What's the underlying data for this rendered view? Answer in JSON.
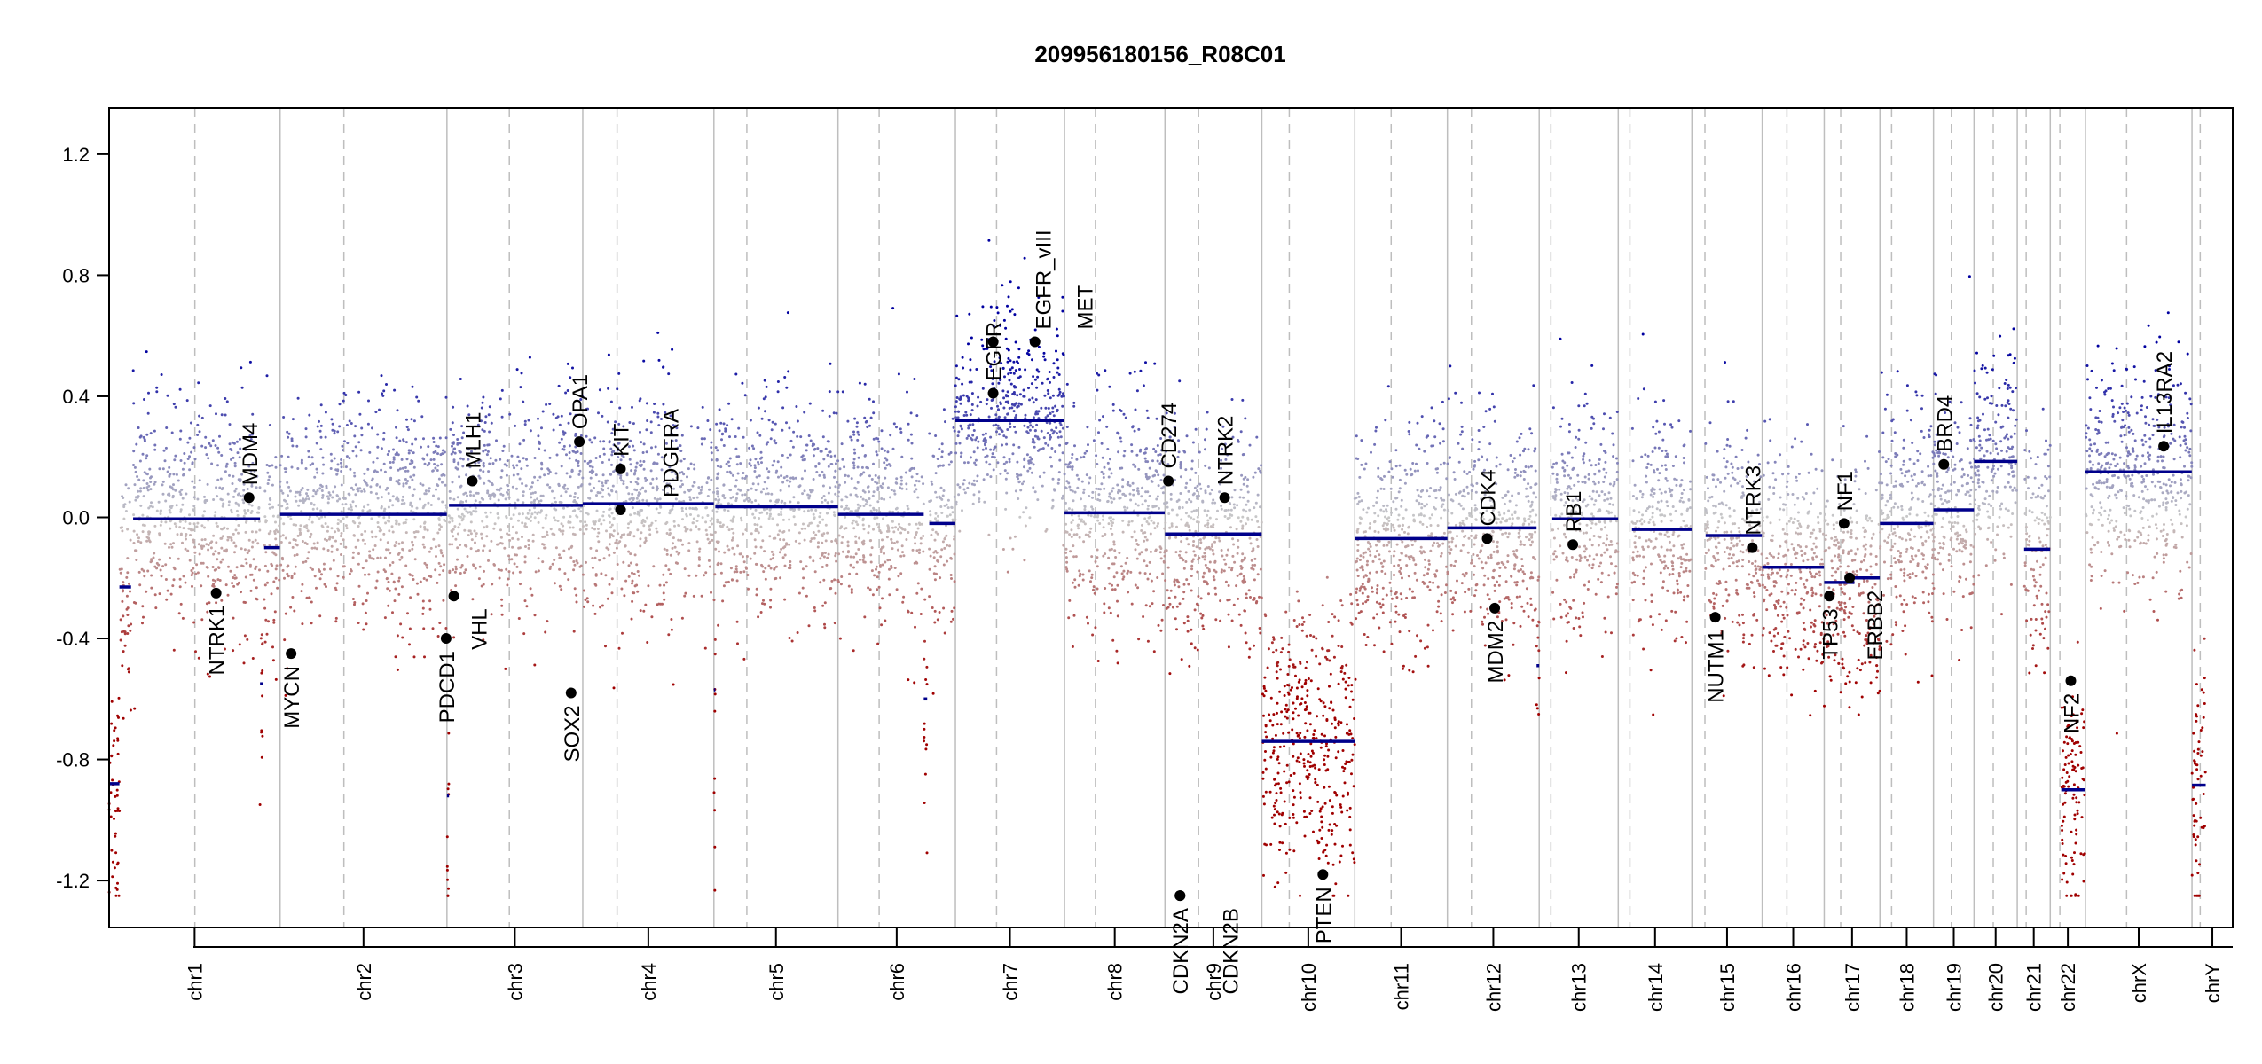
{
  "chart_data": {
    "type": "scatter",
    "title": "209956180156_R08C01",
    "xlabel": "",
    "ylabel": "",
    "ylim": [
      -1.355,
      1.352
    ],
    "yticks": [
      "-1.2",
      "-0.8",
      "-0.4",
      "0.0",
      "0.4",
      "0.8",
      "1.2"
    ],
    "grid": false,
    "chromosomes": [
      {
        "name": "chr1",
        "length": 249.25,
        "centromere": 125
      },
      {
        "name": "chr2",
        "length": 243.2,
        "centromere": 93
      },
      {
        "name": "chr3",
        "length": 198.0,
        "centromere": 91
      },
      {
        "name": "chr4",
        "length": 191.15,
        "centromere": 50
      },
      {
        "name": "chr5",
        "length": 180.9,
        "centromere": 48
      },
      {
        "name": "chr6",
        "length": 171.1,
        "centromere": 60
      },
      {
        "name": "chr7",
        "length": 159.1,
        "centromere": 60
      },
      {
        "name": "chr8",
        "length": 146.4,
        "centromere": 45
      },
      {
        "name": "chr9",
        "length": 141.2,
        "centromere": 49
      },
      {
        "name": "chr10",
        "length": 135.5,
        "centromere": 40
      },
      {
        "name": "chr11",
        "length": 135.0,
        "centromere": 53
      },
      {
        "name": "chr12",
        "length": 133.85,
        "centromere": 35
      },
      {
        "name": "chr13",
        "length": 115.2,
        "centromere": 17
      },
      {
        "name": "chr14",
        "length": 107.35,
        "centromere": 17
      },
      {
        "name": "chr15",
        "length": 102.5,
        "centromere": 19
      },
      {
        "name": "chr16",
        "length": 90.35,
        "centromere": 36
      },
      {
        "name": "chr17",
        "length": 81.2,
        "centromere": 24
      },
      {
        "name": "chr18",
        "length": 78.1,
        "centromere": 17
      },
      {
        "name": "chr19",
        "length": 59.1,
        "centromere": 26
      },
      {
        "name": "chr20",
        "length": 63.0,
        "centromere": 28
      },
      {
        "name": "chr21",
        "length": 48.1,
        "centromere": 13
      },
      {
        "name": "chr22",
        "length": 51.3,
        "centromere": 14
      },
      {
        "name": "chrX",
        "length": 155.3,
        "centromere": 60
      },
      {
        "name": "chrY",
        "length": 59.4,
        "centromere": 12
      }
    ],
    "segments": [
      {
        "chr": "chr1",
        "start": 0,
        "end": 15,
        "value": -0.88
      },
      {
        "chr": "chr1",
        "start": 15,
        "end": 32,
        "value": -0.23
      },
      {
        "chr": "chr1",
        "start": 35,
        "end": 220,
        "value": -0.005
      },
      {
        "chr": "chr1",
        "start": 220,
        "end": 224,
        "value": -0.55
      },
      {
        "chr": "chr1",
        "start": 226,
        "end": 249,
        "value": -0.1
      },
      {
        "chr": "chr2",
        "start": 0,
        "end": 243,
        "value": 0.01
      },
      {
        "chr": "chr3",
        "start": 0,
        "end": 3,
        "value": -0.92
      },
      {
        "chr": "chr3",
        "start": 3,
        "end": 198,
        "value": 0.04
      },
      {
        "chr": "chr4",
        "start": 0,
        "end": 191,
        "value": 0.045
      },
      {
        "chr": "chr5",
        "start": 0,
        "end": 2,
        "value": -0.57
      },
      {
        "chr": "chr5",
        "start": 2,
        "end": 181,
        "value": 0.035
      },
      {
        "chr": "chr6",
        "start": 0,
        "end": 125,
        "value": 0.01
      },
      {
        "chr": "chr6",
        "start": 125,
        "end": 130,
        "value": -0.6
      },
      {
        "chr": "chr6",
        "start": 133,
        "end": 171,
        "value": -0.02
      },
      {
        "chr": "chr7",
        "start": 0,
        "end": 159,
        "value": 0.32
      },
      {
        "chr": "chr8",
        "start": 0,
        "end": 146,
        "value": 0.015
      },
      {
        "chr": "chr9",
        "start": 0,
        "end": 141,
        "value": -0.055
      },
      {
        "chr": "chr10",
        "start": 0,
        "end": 135.5,
        "value": -0.74
      },
      {
        "chr": "chr11",
        "start": 0,
        "end": 135,
        "value": -0.07
      },
      {
        "chr": "chr12",
        "start": 0,
        "end": 130,
        "value": -0.035
      },
      {
        "chr": "chr12",
        "start": 130,
        "end": 133.85,
        "value": -0.49
      },
      {
        "chr": "chr13",
        "start": 19,
        "end": 115,
        "value": -0.005
      },
      {
        "chr": "chr14",
        "start": 20,
        "end": 107,
        "value": -0.04
      },
      {
        "chr": "chr15",
        "start": 20,
        "end": 102,
        "value": -0.06
      },
      {
        "chr": "chr16",
        "start": 0,
        "end": 90,
        "value": -0.165
      },
      {
        "chr": "chr17",
        "start": 0,
        "end": 44,
        "value": -0.215
      },
      {
        "chr": "chr17",
        "start": 44,
        "end": 81,
        "value": -0.2
      },
      {
        "chr": "chr18",
        "start": 0,
        "end": 78,
        "value": -0.02
      },
      {
        "chr": "chr19",
        "start": 0,
        "end": 59,
        "value": 0.025
      },
      {
        "chr": "chr20",
        "start": 0,
        "end": 63,
        "value": 0.185
      },
      {
        "chr": "chr21",
        "start": 10,
        "end": 48,
        "value": -0.105
      },
      {
        "chr": "chr22",
        "start": 16,
        "end": 51,
        "value": -0.9
      },
      {
        "chr": "chrX",
        "start": 0,
        "end": 155,
        "value": 0.15
      },
      {
        "chr": "chrY",
        "start": 0,
        "end": 20,
        "value": -0.885
      }
    ],
    "genes": [
      {
        "name": "NTRK1",
        "chr": "chr1",
        "pos": 156,
        "value": -0.25
      },
      {
        "name": "MDM4",
        "chr": "chr1",
        "pos": 204,
        "value": 0.065
      },
      {
        "name": "MYCN",
        "chr": "chr2",
        "pos": 16,
        "value": -0.45
      },
      {
        "name": "PDCD1",
        "chr": "chr2",
        "pos": 242,
        "value": -0.4
      },
      {
        "name": "VHL",
        "chr": "chr3",
        "pos": 10,
        "value": -0.26
      },
      {
        "name": "MLH1",
        "chr": "chr3",
        "pos": 37,
        "value": 0.12
      },
      {
        "name": "SOX2",
        "chr": "chr3",
        "pos": 181,
        "value": -0.58
      },
      {
        "name": "OPA1",
        "chr": "chr3",
        "pos": 193,
        "value": 0.25
      },
      {
        "name": "KIT",
        "chr": "chr4",
        "pos": 55,
        "value": 0.16
      },
      {
        "name": "PDGFRA",
        "chr": "chr4",
        "pos": 55,
        "value": 0.025
      },
      {
        "name": "EGFR",
        "chr": "chr7",
        "pos": 55,
        "value": 0.41
      },
      {
        "name": "EGFR_vIII",
        "chr": "chr7",
        "pos": 55.1,
        "value": 0.58
      },
      {
        "name": "MET",
        "chr": "chr7",
        "pos": 116,
        "value": 0.58
      },
      {
        "name": "CD274",
        "chr": "chr9",
        "pos": 5,
        "value": 0.12
      },
      {
        "name": "CDKN2A",
        "chr": "chr9",
        "pos": 21.9,
        "value": -1.25
      },
      {
        "name": "CDKN2B",
        "chr": "chr9",
        "pos": 22,
        "value": -1.25
      },
      {
        "name": "NTRK2",
        "chr": "chr9",
        "pos": 87,
        "value": 0.065
      },
      {
        "name": "PTEN",
        "chr": "chr10",
        "pos": 89,
        "value": -1.18
      },
      {
        "name": "CDK4",
        "chr": "chr12",
        "pos": 58,
        "value": -0.07
      },
      {
        "name": "MDM2",
        "chr": "chr12",
        "pos": 69,
        "value": -0.3
      },
      {
        "name": "RB1",
        "chr": "chr13",
        "pos": 49,
        "value": -0.09
      },
      {
        "name": "NUTM1",
        "chr": "chr15",
        "pos": 34,
        "value": -0.33
      },
      {
        "name": "NTRK3",
        "chr": "chr15",
        "pos": 88,
        "value": -0.1
      },
      {
        "name": "TP53",
        "chr": "chr17",
        "pos": 7.5,
        "value": -0.26
      },
      {
        "name": "NF1",
        "chr": "chr17",
        "pos": 29,
        "value": -0.02
      },
      {
        "name": "ERBB2",
        "chr": "chr17",
        "pos": 37,
        "value": -0.2
      },
      {
        "name": "BRD4",
        "chr": "chr19",
        "pos": 15,
        "value": 0.175
      },
      {
        "name": "NF2",
        "chr": "chr22",
        "pos": 30,
        "value": -0.54
      },
      {
        "name": "IL13RA2",
        "chr": "chrX",
        "pos": 114,
        "value": 0.235
      }
    ],
    "colors": {
      "gain": "#0000a0",
      "neutral": "#c8c8c8",
      "loss": "#a00000",
      "segment": "#00008b",
      "boundary": "#bebebe"
    }
  }
}
